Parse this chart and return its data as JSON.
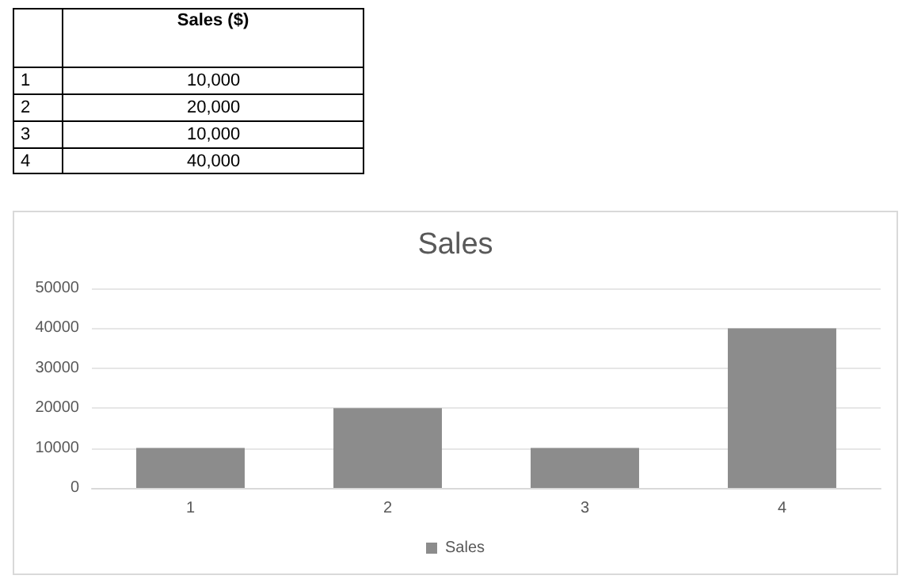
{
  "chart_data": [
    {
      "type": "other",
      "annotations": [
        "Sales ($)",
        "1",
        "10,000",
        "2",
        "20,000",
        "3",
        "10,000",
        "4",
        "40,000"
      ]
    },
    {
      "type": "bar",
      "title": "Sales",
      "categories": [
        "1",
        "2",
        "3",
        "4"
      ],
      "series": [
        {
          "name": "Sales",
          "color": "#8c8c8c",
          "values": [
            10000,
            20000,
            10000,
            40000
          ]
        }
      ],
      "ylim": [
        0,
        50000
      ],
      "yticks": [
        0,
        10000,
        20000,
        30000,
        40000,
        50000
      ],
      "grid": "y",
      "legend": "bottom"
    }
  ]
}
